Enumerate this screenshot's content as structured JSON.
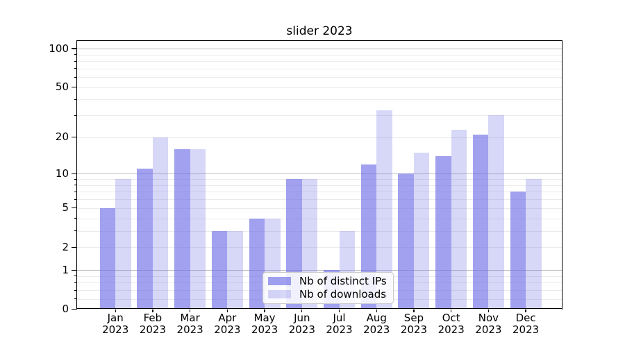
{
  "title": "slider 2023",
  "legend": {
    "items": [
      {
        "label": "Nb of distinct IPs"
      },
      {
        "label": "Nb of downloads"
      }
    ]
  },
  "y_axis": {
    "tick_labels": [
      "0",
      "1",
      "2",
      "5",
      "10",
      "20",
      "50",
      "100"
    ]
  },
  "chart_data": {
    "type": "bar",
    "title": "slider 2023",
    "categories": [
      "Jan 2023",
      "Feb 2023",
      "Mar 2023",
      "Apr 2023",
      "May 2023",
      "Jun 2023",
      "Jul 2023",
      "Aug 2023",
      "Sep 2023",
      "Oct 2023",
      "Nov 2023",
      "Dec 2023"
    ],
    "series": [
      {
        "name": "Nb of distinct IPs",
        "color": "#6e6ee6",
        "alpha": 0.65,
        "values": [
          5,
          11,
          16,
          3,
          4,
          9,
          1,
          12,
          10,
          14,
          21,
          7
        ]
      },
      {
        "name": "Nb of downloads",
        "color": "#6e6ee6",
        "alpha": 0.28,
        "values": [
          9,
          20,
          16,
          3,
          4,
          9,
          3,
          33,
          15,
          23,
          30,
          9
        ]
      }
    ],
    "xlabel": "",
    "ylabel": "",
    "yscale": "log1p",
    "ylim": [
      0,
      118
    ],
    "y_ticks": [
      0,
      1,
      2,
      5,
      10,
      20,
      50,
      100
    ],
    "y_major_gridlines": [
      1,
      10,
      100
    ],
    "y_minor_gridlines": [
      0.2,
      0.4,
      0.6,
      0.8,
      2,
      3,
      4,
      5,
      6,
      7,
      8,
      9,
      20,
      30,
      40,
      50,
      60,
      70,
      80,
      90
    ],
    "grid": "on",
    "legend_position": "lower center",
    "colors": {
      "grid_minor": "#ebebeb",
      "grid_major": "#bdbdbd",
      "axis": "#000000",
      "background": "#ffffff"
    }
  }
}
